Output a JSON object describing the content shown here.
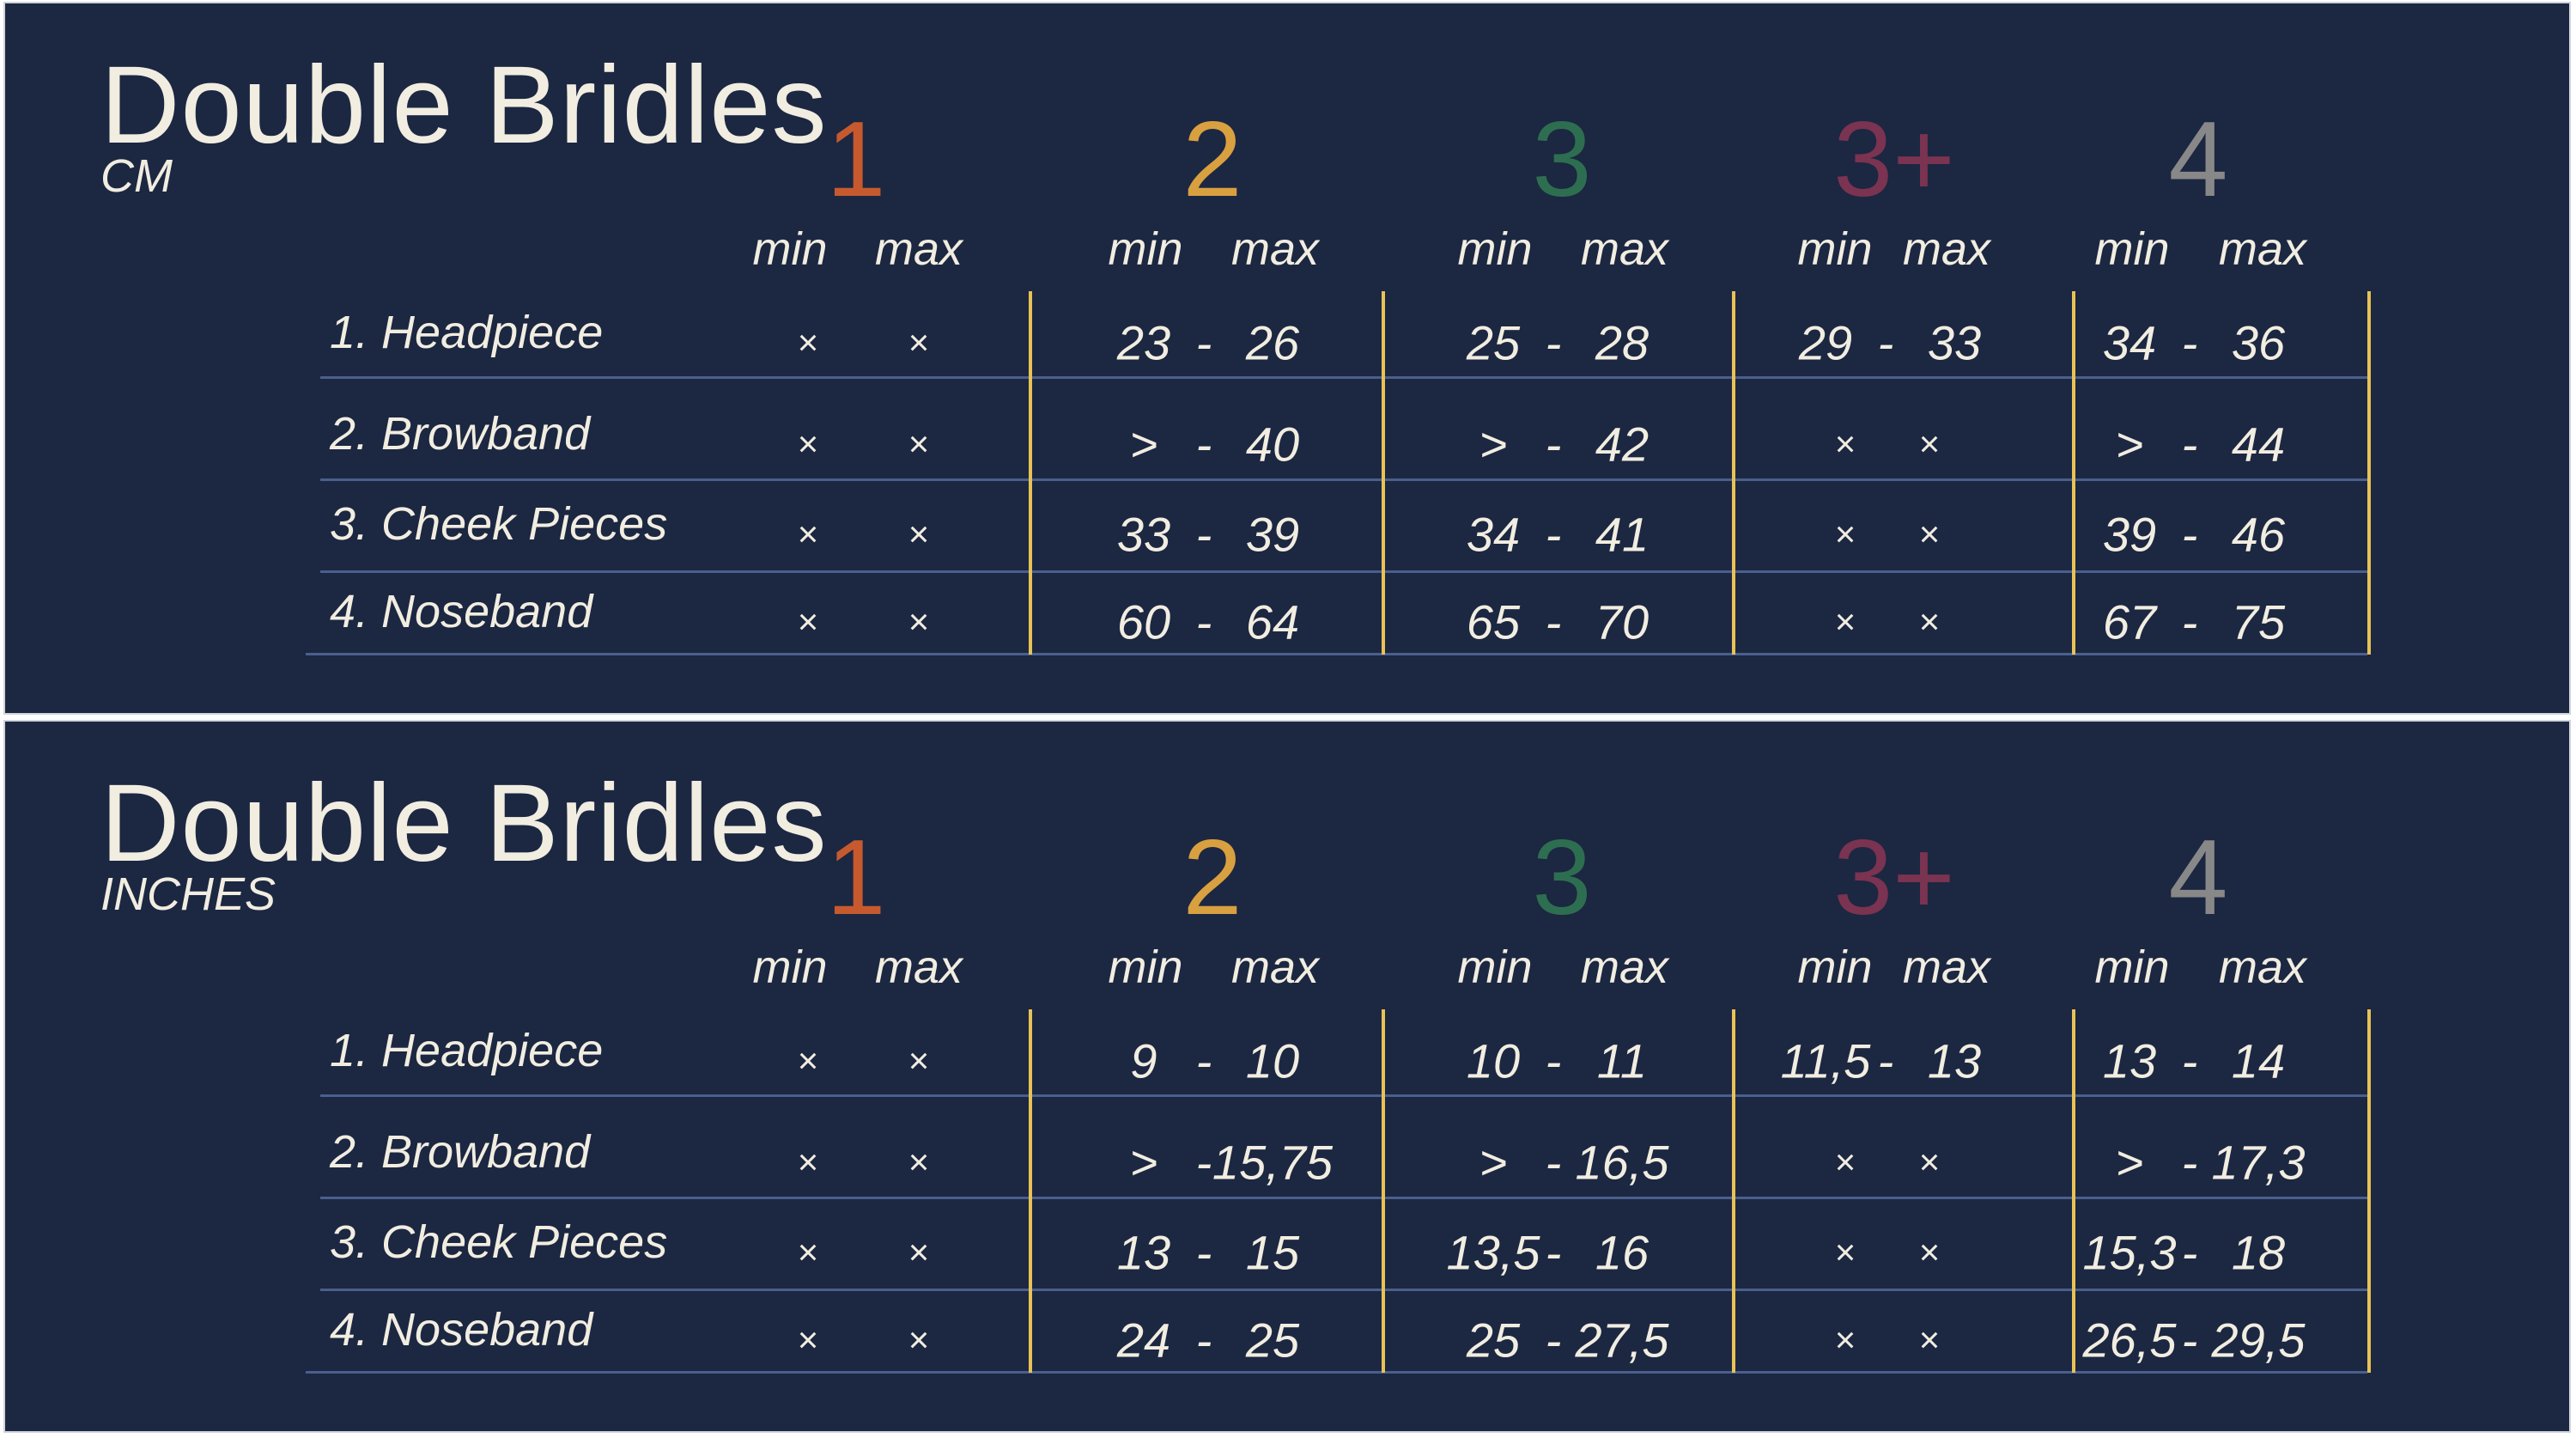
{
  "colors": {
    "background": "#1c2742",
    "text": "#f1ede0",
    "divider": "#e8c255",
    "row_line": "#4a5f8c"
  },
  "sizes": [
    {
      "label": "1",
      "color": "#c65a2e"
    },
    {
      "label": "2",
      "color": "#d9a040"
    },
    {
      "label": "3",
      "color": "#2e6e50"
    },
    {
      "label": "3+",
      "color": "#7a3350"
    },
    {
      "label": "4",
      "color": "#888888"
    }
  ],
  "col_min": "min",
  "col_max": "max",
  "rows": [
    "1. Headpiece",
    "2. Browband",
    "3. Cheek Pieces",
    "4. Noseband"
  ],
  "tables": [
    {
      "title": "Double Bridles",
      "unit": "CM",
      "values": [
        [
          [
            "x",
            "x"
          ],
          [
            "23",
            "26"
          ],
          [
            "25",
            "28"
          ],
          [
            "29",
            "33"
          ],
          [
            "34",
            "36"
          ]
        ],
        [
          [
            "x",
            "x"
          ],
          [
            ">",
            "40"
          ],
          [
            ">",
            "42"
          ],
          [
            "x",
            "x"
          ],
          [
            ">",
            "44"
          ]
        ],
        [
          [
            "x",
            "x"
          ],
          [
            "33",
            "39"
          ],
          [
            "34",
            "41"
          ],
          [
            "x",
            "x"
          ],
          [
            "39",
            "46"
          ]
        ],
        [
          [
            "x",
            "x"
          ],
          [
            "60",
            "64"
          ],
          [
            "65",
            "70"
          ],
          [
            "x",
            "x"
          ],
          [
            "67",
            "75"
          ]
        ]
      ]
    },
    {
      "title": "Double Bridles",
      "unit": "INCHES",
      "values": [
        [
          [
            "x",
            "x"
          ],
          [
            "9",
            "10"
          ],
          [
            "10",
            "11"
          ],
          [
            "11,5",
            "13"
          ],
          [
            "13",
            "14"
          ]
        ],
        [
          [
            "x",
            "x"
          ],
          [
            ">",
            "15,75"
          ],
          [
            ">",
            "16,5"
          ],
          [
            "x",
            "x"
          ],
          [
            ">",
            "17,3"
          ]
        ],
        [
          [
            "x",
            "x"
          ],
          [
            "13",
            "15"
          ],
          [
            "13,5",
            "16"
          ],
          [
            "x",
            "x"
          ],
          [
            "15,3",
            "18"
          ]
        ],
        [
          [
            "x",
            "x"
          ],
          [
            "24",
            "25"
          ],
          [
            "25",
            "27,5"
          ],
          [
            "x",
            "x"
          ],
          [
            "26,5",
            "29,5"
          ]
        ]
      ]
    }
  ]
}
